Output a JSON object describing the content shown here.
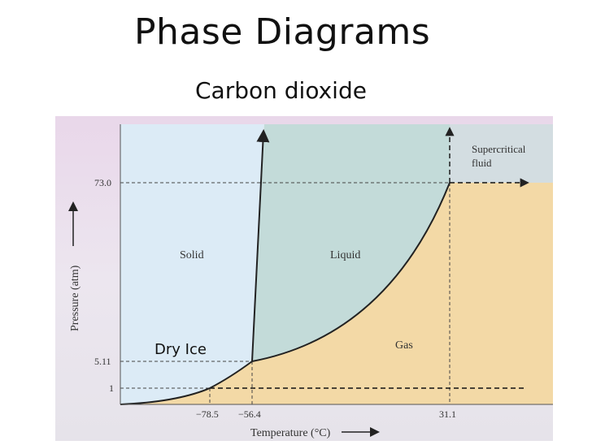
{
  "title": "Phase Diagrams",
  "subtitle": "Carbon dioxide",
  "colors": {
    "solid": "#dcebf6",
    "liquid": "#c4dcda",
    "gas": "#f3d9a6",
    "supercritical": "#d4dde0",
    "frame_bg": "#e7d9e9",
    "curve": "#222222"
  },
  "diagram": {
    "y_axis_label": "Pressure (atm)",
    "x_axis_label": "Temperature (°C)",
    "pressure_ticks": [
      "73.0",
      "5.11",
      "1"
    ],
    "temperature_ticks": [
      "−78.5",
      "−56.4",
      "31.1"
    ],
    "regions": {
      "solid": "Solid",
      "liquid": "Liquid",
      "gas": "Gas",
      "supercritical_line1": "Supercritical",
      "supercritical_line2": "fluid"
    },
    "annotation": "Dry Ice"
  }
}
